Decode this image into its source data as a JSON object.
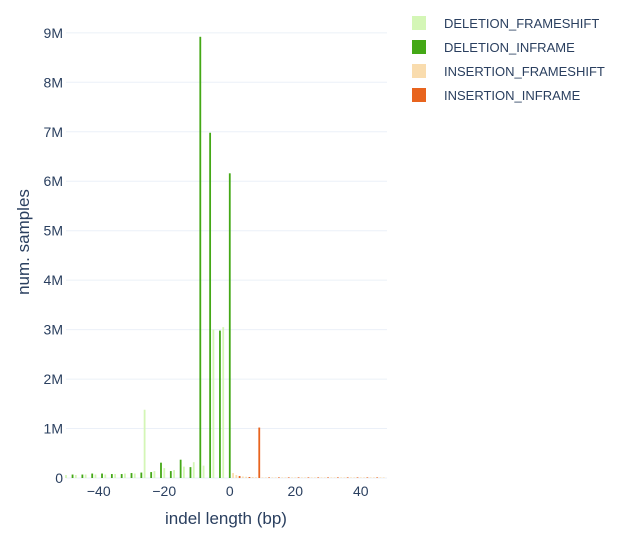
{
  "chart_data": {
    "type": "bar",
    "xlabel": "indel length (bp)",
    "ylabel": "num. samples",
    "xlim": [
      -50,
      48
    ],
    "ylim": [
      0,
      9300000
    ],
    "x_ticks": [
      -40,
      -20,
      0,
      20,
      40
    ],
    "x_tick_labels": [
      "−40",
      "−20",
      "0",
      "20",
      "40"
    ],
    "y_ticks": [
      0,
      1000000,
      2000000,
      3000000,
      4000000,
      5000000,
      6000000,
      7000000,
      8000000,
      9000000
    ],
    "y_tick_labels": [
      "0",
      "1M",
      "2M",
      "3M",
      "4M",
      "5M",
      "6M",
      "7M",
      "8M",
      "9M"
    ],
    "grid": true,
    "legend_position": "top-right",
    "series": [
      {
        "name": "DELETION_FRAMESHIFT",
        "color": "#d4f6b6",
        "points": [
          {
            "x": -50,
            "y": 60000
          },
          {
            "x": -47,
            "y": 60000
          },
          {
            "x": -44,
            "y": 70000
          },
          {
            "x": -41,
            "y": 70000
          },
          {
            "x": -38,
            "y": 70000
          },
          {
            "x": -35,
            "y": 80000
          },
          {
            "x": -32,
            "y": 90000
          },
          {
            "x": -29,
            "y": 90000
          },
          {
            "x": -26,
            "y": 1380000
          },
          {
            "x": -23,
            "y": 140000
          },
          {
            "x": -20,
            "y": 200000
          },
          {
            "x": -17,
            "y": 160000
          },
          {
            "x": -14,
            "y": 230000
          },
          {
            "x": -11,
            "y": 320000
          },
          {
            "x": -8,
            "y": 250000
          },
          {
            "x": -5,
            "y": 3000000
          },
          {
            "x": -2,
            "y": 3050000
          }
        ]
      },
      {
        "name": "DELETION_INFRAME",
        "color": "#44a816",
        "points": [
          {
            "x": -48,
            "y": 70000
          },
          {
            "x": -45,
            "y": 70000
          },
          {
            "x": -42,
            "y": 90000
          },
          {
            "x": -39,
            "y": 90000
          },
          {
            "x": -36,
            "y": 80000
          },
          {
            "x": -33,
            "y": 80000
          },
          {
            "x": -30,
            "y": 100000
          },
          {
            "x": -27,
            "y": 110000
          },
          {
            "x": -24,
            "y": 120000
          },
          {
            "x": -21,
            "y": 310000
          },
          {
            "x": -18,
            "y": 140000
          },
          {
            "x": -15,
            "y": 370000
          },
          {
            "x": -12,
            "y": 220000
          },
          {
            "x": -9,
            "y": 8920000
          },
          {
            "x": -6,
            "y": 6980000
          },
          {
            "x": -3,
            "y": 2980000
          },
          {
            "x": 0,
            "y": 6160000
          }
        ]
      },
      {
        "name": "INSERTION_FRAMESHIFT",
        "color": "#f9dcae",
        "points": [
          {
            "x": 1,
            "y": 100000
          },
          {
            "x": 2,
            "y": 60000
          },
          {
            "x": 4,
            "y": 30000
          },
          {
            "x": 5,
            "y": 25000
          },
          {
            "x": 7,
            "y": 20000
          },
          {
            "x": 8,
            "y": 15000
          },
          {
            "x": 10,
            "y": 12000
          },
          {
            "x": 11,
            "y": 10000
          },
          {
            "x": 13,
            "y": 8000
          },
          {
            "x": 14,
            "y": 8000
          },
          {
            "x": 16,
            "y": 6000
          },
          {
            "x": 17,
            "y": 6000
          },
          {
            "x": 19,
            "y": 5000
          },
          {
            "x": 20,
            "y": 5000
          },
          {
            "x": 22,
            "y": 4000
          },
          {
            "x": 23,
            "y": 4000
          },
          {
            "x": 25,
            "y": 3000
          },
          {
            "x": 26,
            "y": 3000
          },
          {
            "x": 28,
            "y": 3000
          },
          {
            "x": 29,
            "y": 3000
          },
          {
            "x": 31,
            "y": 2000
          },
          {
            "x": 32,
            "y": 2000
          },
          {
            "x": 34,
            "y": 2000
          },
          {
            "x": 35,
            "y": 2000
          },
          {
            "x": 37,
            "y": 2000
          },
          {
            "x": 38,
            "y": 2000
          },
          {
            "x": 40,
            "y": 2000
          },
          {
            "x": 41,
            "y": 2000
          },
          {
            "x": 43,
            "y": 2000
          },
          {
            "x": 44,
            "y": 2000
          },
          {
            "x": 46,
            "y": 2000
          },
          {
            "x": 47,
            "y": 2000
          }
        ]
      },
      {
        "name": "INSERTION_INFRAME",
        "color": "#e8641e",
        "points": [
          {
            "x": 3,
            "y": 40000
          },
          {
            "x": 6,
            "y": 20000
          },
          {
            "x": 9,
            "y": 1020000
          },
          {
            "x": 12,
            "y": 10000
          },
          {
            "x": 15,
            "y": 8000
          },
          {
            "x": 18,
            "y": 6000
          },
          {
            "x": 21,
            "y": 5000
          },
          {
            "x": 24,
            "y": 4000
          },
          {
            "x": 27,
            "y": 3000
          },
          {
            "x": 30,
            "y": 3000
          },
          {
            "x": 33,
            "y": 2000
          },
          {
            "x": 36,
            "y": 2000
          },
          {
            "x": 39,
            "y": 2000
          },
          {
            "x": 42,
            "y": 2000
          },
          {
            "x": 45,
            "y": 2000
          }
        ]
      }
    ]
  }
}
